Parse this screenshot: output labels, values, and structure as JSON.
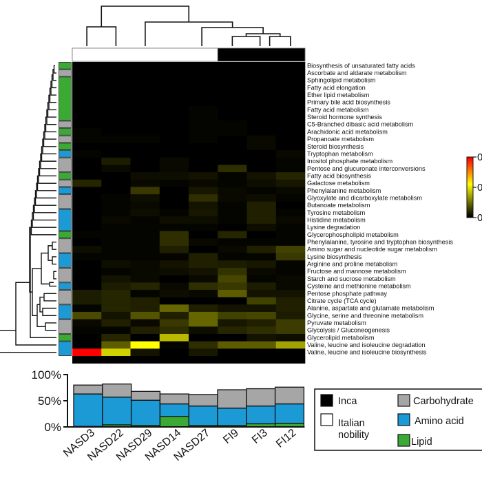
{
  "chart_data": [
    {
      "type": "heatmap",
      "title": "",
      "columns": [
        "NASD3",
        "NASD22",
        "NASD29",
        "NASD14",
        "NASD27",
        "FI9",
        "FI3",
        "FI12"
      ],
      "column_groups": [
        "Italian nobility",
        "Italian nobility",
        "Italian nobility",
        "Italian nobility",
        "Italian nobility",
        "Inca",
        "Inca",
        "Inca"
      ],
      "rows": [
        {
          "label": "Biosynthesis of unsaturated fatty acids",
          "category": "Lipid"
        },
        {
          "label": "Ascorbate and aldarate metabolism",
          "category": "Carbohydrate"
        },
        {
          "label": "Sphingolipid metabolism",
          "category": "Lipid"
        },
        {
          "label": "Fatty acid elongation",
          "category": "Lipid"
        },
        {
          "label": "Ether lipid metabolism",
          "category": "Lipid"
        },
        {
          "label": "Primary bile acid biosynthesis",
          "category": "Lipid"
        },
        {
          "label": "Fatty acid metabolism",
          "category": "Lipid"
        },
        {
          "label": "Steroid hormone synthesis",
          "category": "Lipid"
        },
        {
          "label": "C5-Branched dibasic acid metabolism",
          "category": "Carbohydrate"
        },
        {
          "label": "Arachidonic acid metabolism",
          "category": "Lipid"
        },
        {
          "label": "Propanoate metabolism",
          "category": "Carbohydrate"
        },
        {
          "label": "Steroid biosynthesis",
          "category": "Lipid"
        },
        {
          "label": "Tryptophan metabolism",
          "category": "Amino acid"
        },
        {
          "label": "Inositol phosphate metabolism",
          "category": "Carbohydrate"
        },
        {
          "label": "Pentose and glucuronate interconversions",
          "category": "Carbohydrate"
        },
        {
          "label": "Fatty acid biosynthesis",
          "category": "Lipid"
        },
        {
          "label": "Galactose metabolism",
          "category": "Carbohydrate"
        },
        {
          "label": "Phenylalanine metabolism",
          "category": "Amino acid"
        },
        {
          "label": "Glyoxylate and dicarboxylate metabolism",
          "category": "Carbohydrate"
        },
        {
          "label": "Butanoate metabolism",
          "category": "Carbohydrate"
        },
        {
          "label": "Tyrosine metabolism",
          "category": "Amino acid"
        },
        {
          "label": "Histidine metabolism",
          "category": "Amino acid"
        },
        {
          "label": "Lysine degradation",
          "category": "Amino acid"
        },
        {
          "label": "Glycerophospholipid metabolism",
          "category": "Lipid"
        },
        {
          "label": "Phenylalanine, tyrosine and tryptophan biosynthesis",
          "category": "Carbohydrate"
        },
        {
          "label": "Amino sugar and nucleotide sugar metabolism",
          "category": "Carbohydrate"
        },
        {
          "label": "Lysine biosynthesis",
          "category": "Amino acid"
        },
        {
          "label": "Arginine and proline metabolism",
          "category": "Amino acid"
        },
        {
          "label": "Fructose and mannose metabolism",
          "category": "Carbohydrate"
        },
        {
          "label": "Starch and sucrose metabolism",
          "category": "Carbohydrate"
        },
        {
          "label": "Cysteine and methionine metabolism",
          "category": "Amino acid"
        },
        {
          "label": "Pentose phosphate pathway",
          "category": "Carbohydrate"
        },
        {
          "label": "Citrate cycle (TCA cycle)",
          "category": "Carbohydrate"
        },
        {
          "label": "Alanine, aspartate and glutamate metabolism",
          "category": "Amino acid"
        },
        {
          "label": "Glycine, serine and threonine metabolism",
          "category": "Amino acid"
        },
        {
          "label": "Pyruvate metabolism",
          "category": "Carbohydrate"
        },
        {
          "label": "Glycolysis / Gluconeogenesis",
          "category": "Carbohydrate"
        },
        {
          "label": "Glycerolipid metabolism",
          "category": "Lipid"
        },
        {
          "label": "Valine, leucine and isoleucine degradation",
          "category": "Amino acid"
        },
        {
          "label": "Valine, leucine and isoleucine biosynthesis",
          "category": "Amino acid"
        }
      ],
      "values_relative_0_to_1": [
        [
          0.0,
          0.0,
          0.0,
          0.0,
          0.0,
          0.0,
          0.0,
          0.0
        ],
        [
          0.0,
          0.0,
          0.0,
          0.0,
          0.0,
          0.0,
          0.0,
          0.0
        ],
        [
          0.0,
          0.0,
          0.0,
          0.0,
          0.0,
          0.0,
          0.0,
          0.0
        ],
        [
          0.0,
          0.0,
          0.0,
          0.0,
          0.0,
          0.0,
          0.0,
          0.0
        ],
        [
          0.0,
          0.0,
          0.0,
          0.0,
          0.0,
          0.0,
          0.0,
          0.0
        ],
        [
          0.0,
          0.0,
          0.0,
          0.0,
          0.0,
          0.0,
          0.0,
          0.0
        ],
        [
          0.0,
          0.0,
          0.0,
          0.0,
          0.01,
          0.0,
          0.0,
          0.0
        ],
        [
          0.0,
          0.0,
          0.0,
          0.0,
          0.01,
          0.0,
          0.0,
          0.0
        ],
        [
          0.0,
          0.0,
          0.0,
          0.0,
          0.01,
          0.01,
          0.0,
          0.0
        ],
        [
          0.01,
          0.0,
          0.0,
          0.0,
          0.01,
          0.01,
          0.0,
          0.0
        ],
        [
          0.01,
          0.01,
          0.01,
          0.0,
          0.01,
          0.0,
          0.02,
          0.0
        ],
        [
          0.0,
          0.0,
          0.0,
          0.0,
          0.0,
          0.0,
          0.02,
          0.0
        ],
        [
          0.01,
          0.0,
          0.0,
          0.0,
          0.0,
          0.0,
          0.0,
          0.02
        ],
        [
          0.0,
          0.06,
          0.0,
          0.02,
          0.0,
          0.0,
          0.0,
          0.01
        ],
        [
          0.0,
          0.02,
          0.0,
          0.02,
          0.0,
          0.1,
          0.0,
          0.01
        ],
        [
          0.0,
          0.0,
          0.03,
          0.03,
          0.04,
          0.01,
          0.04,
          0.08
        ],
        [
          0.08,
          0.0,
          0.02,
          0.01,
          0.02,
          0.01,
          0.03,
          0.05
        ],
        [
          0.0,
          0.0,
          0.12,
          0.0,
          0.05,
          0.02,
          0.01,
          0.02
        ],
        [
          0.0,
          0.01,
          0.03,
          0.0,
          0.1,
          0.02,
          0.03,
          0.01
        ],
        [
          0.0,
          0.01,
          0.02,
          0.0,
          0.04,
          0.01,
          0.07,
          0.0
        ],
        [
          0.0,
          0.01,
          0.03,
          0.01,
          0.05,
          0.01,
          0.07,
          0.01
        ],
        [
          0.0,
          0.02,
          0.01,
          0.03,
          0.03,
          0.01,
          0.07,
          0.02
        ],
        [
          0.0,
          0.01,
          0.01,
          0.01,
          0.01,
          0.0,
          0.03,
          0.01
        ],
        [
          0.01,
          0.01,
          0.01,
          0.1,
          0.0,
          0.08,
          0.0,
          0.01
        ],
        [
          0.0,
          0.01,
          0.01,
          0.1,
          0.02,
          0.01,
          0.01,
          0.01
        ],
        [
          0.03,
          0.01,
          0.01,
          0.07,
          0.0,
          0.02,
          0.07,
          0.14
        ],
        [
          0.01,
          0.01,
          0.01,
          0.01,
          0.07,
          0.01,
          0.01,
          0.12
        ],
        [
          0.0,
          0.03,
          0.02,
          0.04,
          0.07,
          0.06,
          0.05,
          0.01
        ],
        [
          0.0,
          0.01,
          0.02,
          0.03,
          0.04,
          0.11,
          0.02,
          0.01
        ],
        [
          0.0,
          0.04,
          0.02,
          0.0,
          0.02,
          0.15,
          0.01,
          0.02
        ],
        [
          0.0,
          0.06,
          0.08,
          0.02,
          0.1,
          0.12,
          0.06,
          0.02
        ],
        [
          0.06,
          0.08,
          0.01,
          0.03,
          0.02,
          0.2,
          0.04,
          0.04
        ],
        [
          0.06,
          0.08,
          0.07,
          0.0,
          0.0,
          0.0,
          0.14,
          0.07
        ],
        [
          0.01,
          0.08,
          0.07,
          0.22,
          0.07,
          0.04,
          0.04,
          0.07
        ],
        [
          0.16,
          0.04,
          0.18,
          0.07,
          0.22,
          0.14,
          0.15,
          0.06
        ],
        [
          0.02,
          0.07,
          0.02,
          0.12,
          0.22,
          0.05,
          0.07,
          0.13
        ],
        [
          0.01,
          0.01,
          0.07,
          0.1,
          0.03,
          0.08,
          0.1,
          0.13
        ],
        [
          0.0,
          0.08,
          0.0,
          0.4,
          0.0,
          0.0,
          0.04,
          0.03
        ],
        [
          0.0,
          0.2,
          0.55,
          0.01,
          0.1,
          0.2,
          0.2,
          0.35
        ],
        [
          1.0,
          0.45,
          0.04,
          0.0,
          0.05,
          0.0,
          0.0,
          0.0
        ],
        [
          0.0,
          0.0,
          0.0,
          0.0,
          0.0,
          0.0,
          0.0,
          0.0
        ]
      ],
      "colorbar": {
        "labels": [
          "0",
          "0",
          "0"
        ],
        "colors": [
          "#ff0000",
          "#ffff00",
          "#000000"
        ],
        "note": "labels truncated at image edge"
      }
    },
    {
      "type": "bar",
      "stacked": true,
      "categories": [
        "NASD3",
        "NASD22",
        "NASD29",
        "NASD14",
        "NASD27",
        "FI9",
        "FI3",
        "FI12"
      ],
      "series": [
        {
          "name": "Lipid",
          "values": [
            1,
            4,
            3,
            20,
            3,
            3,
            6,
            7
          ]
        },
        {
          "name": "Amino acid",
          "values": [
            62,
            53,
            48,
            24,
            37,
            33,
            34,
            37
          ]
        },
        {
          "name": "Carbohydrate",
          "values": [
            17,
            25,
            17,
            19,
            22,
            35,
            33,
            32
          ]
        }
      ],
      "yticks": [
        "0%",
        "50%",
        "100%"
      ],
      "ylim": [
        0,
        100
      ],
      "xlabel": "",
      "ylabel": ""
    }
  ],
  "legend": {
    "items": [
      {
        "label": "Inca",
        "color": "#000000"
      },
      {
        "label": "Italian nobility",
        "line1": "Italian",
        "line2": "nobility",
        "color": "#ffffff"
      },
      {
        "label": "Carbohydrate",
        "color": "#a6a6a6"
      },
      {
        "label": "Amino acid",
        "color": "#1b9ad6"
      },
      {
        "label": "Lipid",
        "color": "#3aaa35"
      }
    ]
  },
  "colors": {
    "Lipid": "#3aaa35",
    "Amino acid": "#1b9ad6",
    "Carbohydrate": "#a6a6a6",
    "Inca": "#000000",
    "Italian nobility": "#ffffff"
  }
}
